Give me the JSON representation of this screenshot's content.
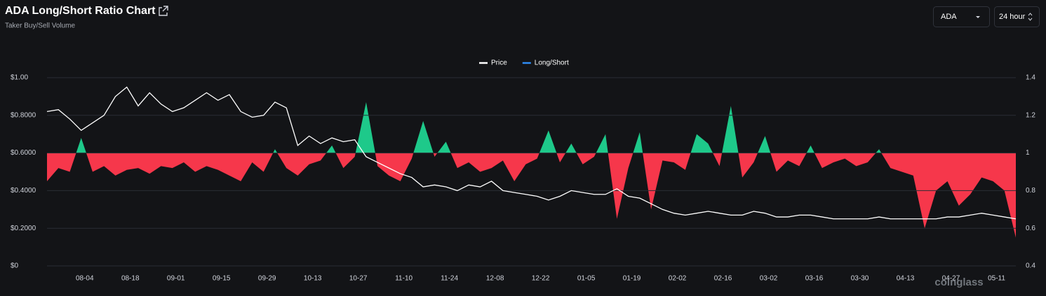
{
  "header": {
    "title": "ADA Long/Short Ratio Chart",
    "subtitle": "Taker Buy/Sell Volume"
  },
  "controls": {
    "symbol": "ADA",
    "interval": "24 hour"
  },
  "watermark": "coinglass",
  "chart_data": {
    "type": "line-area",
    "categories": [
      null,
      null,
      null,
      "08-04",
      null,
      null,
      null,
      "08-18",
      null,
      null,
      null,
      "09-01",
      null,
      null,
      null,
      "09-15",
      null,
      null,
      null,
      "09-29",
      null,
      null,
      null,
      "10-13",
      null,
      null,
      null,
      "10-27",
      null,
      null,
      null,
      "11-10",
      null,
      null,
      null,
      "11-24",
      null,
      null,
      null,
      "12-08",
      null,
      null,
      null,
      "12-22",
      null,
      null,
      null,
      "01-05",
      null,
      null,
      null,
      "01-19",
      null,
      null,
      null,
      "02-02",
      null,
      null,
      null,
      "02-16",
      null,
      null,
      null,
      "03-02",
      null,
      null,
      null,
      "03-16",
      null,
      null,
      null,
      "03-30",
      null,
      null,
      null,
      "04-13",
      null,
      null,
      null,
      "04-27",
      null,
      null,
      null,
      "05-11",
      null,
      null
    ],
    "series": [
      {
        "name": "Price",
        "color": "#ffffff",
        "axis": "y",
        "values": [
          0.82,
          0.83,
          0.78,
          0.72,
          0.76,
          0.8,
          0.9,
          0.95,
          0.85,
          0.92,
          0.86,
          0.82,
          0.84,
          0.88,
          0.92,
          0.88,
          0.91,
          0.82,
          0.79,
          0.8,
          0.87,
          0.84,
          0.64,
          0.69,
          0.65,
          0.68,
          0.66,
          0.67,
          0.58,
          0.55,
          0.52,
          0.49,
          0.47,
          0.42,
          0.43,
          0.42,
          0.4,
          0.43,
          0.42,
          0.45,
          0.4,
          0.39,
          0.38,
          0.37,
          0.35,
          0.37,
          0.4,
          0.39,
          0.38,
          0.38,
          0.41,
          0.37,
          0.36,
          0.33,
          0.3,
          0.28,
          0.27,
          0.28,
          0.29,
          0.28,
          0.27,
          0.27,
          0.29,
          0.28,
          0.26,
          0.26,
          0.27,
          0.27,
          0.26,
          0.25,
          0.25,
          0.25,
          0.25,
          0.26,
          0.25,
          0.25,
          0.25,
          0.25,
          0.25,
          0.26,
          0.26,
          0.27,
          0.28,
          0.27,
          0.26,
          0.25
        ]
      },
      {
        "name": "Long/Short",
        "color": "#2f8cf5",
        "axis": "y2",
        "positive_color": "#1ec98a",
        "negative_color": "#f6374b",
        "values": [
          0.85,
          0.92,
          0.9,
          1.08,
          0.9,
          0.93,
          0.88,
          0.91,
          0.92,
          0.89,
          0.93,
          0.92,
          0.95,
          0.9,
          0.93,
          0.91,
          0.88,
          0.85,
          0.95,
          0.9,
          1.02,
          0.92,
          0.88,
          0.94,
          0.96,
          1.04,
          0.92,
          0.98,
          1.27,
          0.93,
          0.88,
          0.85,
          0.97,
          1.17,
          0.98,
          1.06,
          0.92,
          0.95,
          0.9,
          0.92,
          0.96,
          0.85,
          0.94,
          0.97,
          1.12,
          0.95,
          1.05,
          0.94,
          0.98,
          1.1,
          0.65,
          0.92,
          1.11,
          0.7,
          0.96,
          0.95,
          0.91,
          1.1,
          1.05,
          0.93,
          1.25,
          0.87,
          0.95,
          1.09,
          0.9,
          0.96,
          0.93,
          1.04,
          0.92,
          0.95,
          0.97,
          0.93,
          0.95,
          1.02,
          0.92,
          0.9,
          0.88,
          0.6,
          0.8,
          0.85,
          0.72,
          0.78,
          0.87,
          0.85,
          0.8,
          0.55
        ]
      }
    ],
    "baseline": 1,
    "ylim": [
      0,
      1
    ],
    "yticks": [
      {
        "value": 0,
        "label": "$0"
      },
      {
        "value": 0.2,
        "label": "$0.2000"
      },
      {
        "value": 0.4,
        "label": "$0.4000"
      },
      {
        "value": 0.6,
        "label": "$0.6000"
      },
      {
        "value": 0.8,
        "label": "$0.8000"
      },
      {
        "value": 1,
        "label": "$1.00"
      }
    ],
    "y2lim": [
      0.4,
      1.4
    ],
    "y2ticks": [
      0.4,
      0.6,
      0.8,
      1,
      1.2,
      1.4
    ],
    "grid": true,
    "legend": "top"
  }
}
